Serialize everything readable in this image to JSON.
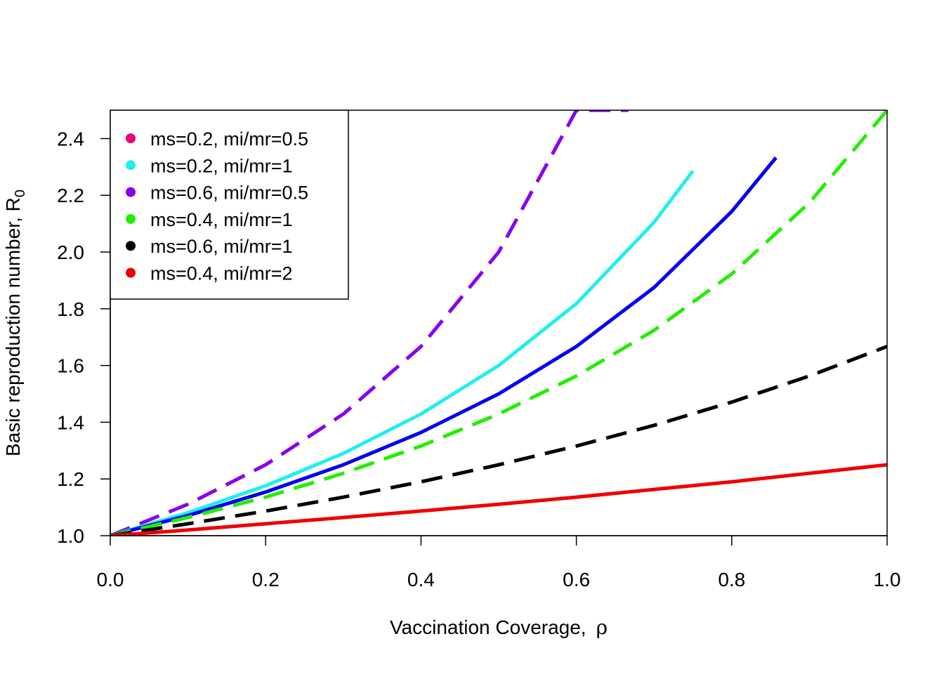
{
  "chart_data": {
    "type": "line",
    "title": "",
    "xlabel": "Vaccination Coverage,",
    "xlabel_symbol": "ρ",
    "ylabel": "Basic reproduction number, R",
    "ylabel_subscript": "0",
    "xlim": [
      0,
      1
    ],
    "ylim": [
      1.0,
      2.5
    ],
    "xticks": [
      "0.0",
      "0.2",
      "0.4",
      "0.6",
      "0.8",
      "1.0"
    ],
    "yticks": [
      "1.0",
      "1.2",
      "1.4",
      "1.6",
      "1.8",
      "2.0",
      "2.2",
      "2.4"
    ],
    "grid": false,
    "legend_position": "top-left",
    "legend": [
      {
        "label": "ms=0.2, mi/mr=0.5",
        "color": "#ee0077"
      },
      {
        "label": "ms=0.2, mi/mr=1",
        "color": "#22eeee"
      },
      {
        "label": "ms=0.6, mi/mr=0.5",
        "color": "#8800ee"
      },
      {
        "label": "ms=0.4, mi/mr=1",
        "color": "#22ee00"
      },
      {
        "label": "ms=0.6, mi/mr=1",
        "color": "#000000"
      },
      {
        "label": "ms=0.4, mi/mr=2",
        "color": "#ee0000"
      }
    ],
    "series": [
      {
        "color": "#8800ee",
        "dashed": true,
        "x": [
          0,
          0.1,
          0.2,
          0.3,
          0.4,
          0.5,
          0.6,
          0.667
        ],
        "y": [
          1.0,
          1.111,
          1.25,
          1.429,
          1.667,
          2.0,
          2.5,
          2.5
        ]
      },
      {
        "color": "#22eeee",
        "dashed": false,
        "x": [
          0,
          0.1,
          0.2,
          0.3,
          0.4,
          0.5,
          0.6,
          0.7,
          0.75
        ],
        "y": [
          1.0,
          1.081,
          1.176,
          1.29,
          1.429,
          1.6,
          1.818,
          2.105,
          2.286
        ]
      },
      {
        "color": "#0000ee",
        "dashed": false,
        "x": [
          0,
          0.1,
          0.2,
          0.3,
          0.4,
          0.5,
          0.6,
          0.7,
          0.8,
          0.857
        ],
        "y": [
          1.0,
          1.071,
          1.154,
          1.25,
          1.364,
          1.5,
          1.667,
          1.875,
          2.143,
          2.333
        ]
      },
      {
        "color": "#22ee00",
        "dashed": true,
        "x": [
          0,
          0.1,
          0.2,
          0.3,
          0.4,
          0.5,
          0.6,
          0.7,
          0.8,
          0.9,
          1.0
        ],
        "y": [
          1.0,
          1.064,
          1.136,
          1.22,
          1.316,
          1.429,
          1.563,
          1.724,
          1.923,
          2.174,
          2.5
        ]
      },
      {
        "color": "#000000",
        "dashed": true,
        "x": [
          0,
          0.1,
          0.2,
          0.3,
          0.4,
          0.5,
          0.6,
          0.7,
          0.8,
          0.9,
          1.0
        ],
        "y": [
          1.0,
          1.042,
          1.087,
          1.136,
          1.19,
          1.25,
          1.316,
          1.389,
          1.471,
          1.563,
          1.667
        ]
      },
      {
        "color": "#ee0000",
        "dashed": false,
        "x": [
          0,
          0.1,
          0.2,
          0.3,
          0.4,
          0.5,
          0.6,
          0.7,
          0.8,
          0.9,
          1.0
        ],
        "y": [
          1.0,
          1.02,
          1.042,
          1.064,
          1.087,
          1.111,
          1.136,
          1.163,
          1.19,
          1.22,
          1.25
        ]
      }
    ]
  }
}
